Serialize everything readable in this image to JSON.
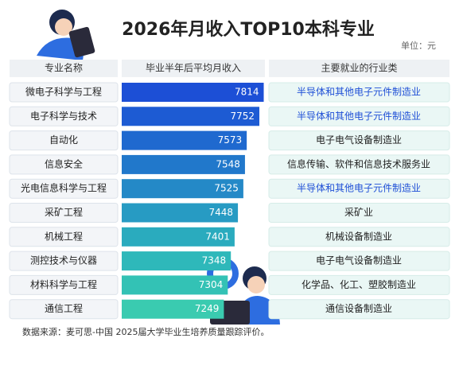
{
  "chart_data": {
    "type": "bar",
    "title": "2026年月收入TOP10本科专业",
    "unit_note": "单位：元",
    "headers": [
      "专业名称",
      "毕业半年后平均月收入",
      "主要就业的行业类"
    ],
    "categories": [
      "微电子科学与工程",
      "电子科学与技术",
      "自动化",
      "信息安全",
      "光电信息科学与工程",
      "采矿工程",
      "机械工程",
      "测控技术与仪器",
      "材料科学与工程",
      "通信工程"
    ],
    "values": [
      7814,
      7752,
      7573,
      7548,
      7525,
      7448,
      7401,
      7348,
      7304,
      7249
    ],
    "colors": [
      "#1c4fd6",
      "#1d5bd3",
      "#1f69cf",
      "#2178cb",
      "#2489c7",
      "#279bc3",
      "#2aabbe",
      "#2eb8ba",
      "#33c2b5",
      "#3acbb0"
    ],
    "industries": [
      "半导体和其他电子元件制造业",
      "半导体和其他电子元件制造业",
      "电子电气设备制造业",
      "信息传输、软件和信息技术服务业",
      "半导体和其他电子元件制造业",
      "采矿业",
      "机械设备制造业",
      "电子电气设备制造业",
      "化学品、化工、塑胶制造业",
      "通信设备制造业"
    ],
    "industry_colors": [
      "#1f4fd6",
      "#1f4fd6",
      "#222222",
      "#222222",
      "#1f4fd6",
      "#222222",
      "#222222",
      "#222222",
      "#222222",
      "#222222"
    ],
    "xlim": [
      5800,
      8000
    ],
    "source": "数据来源：麦可思-中国 2025届大学毕业生培养质量跟踪评价。"
  }
}
